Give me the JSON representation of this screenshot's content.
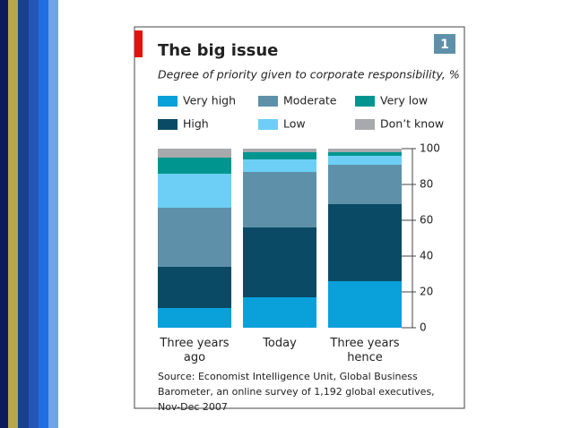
{
  "chart_data": {
    "type": "bar",
    "stacked": true,
    "title": "The big issue",
    "subtitle": "Degree of priority given to corporate responsibility, %",
    "badge": "1",
    "source": "Source: Economist Intelligence Unit, Global Business Barometer, an online survey of 1,192 global executives, Nov-Dec 2007",
    "categories": [
      "Three years ago",
      "Today",
      "Three years hence"
    ],
    "series": [
      {
        "name": "Very high",
        "color": "#0aa0d9",
        "values": [
          11,
          17,
          26
        ]
      },
      {
        "name": "High",
        "color": "#0b4a64",
        "values": [
          23,
          39,
          43
        ]
      },
      {
        "name": "Moderate",
        "color": "#5e91a9",
        "values": [
          33,
          31,
          22
        ]
      },
      {
        "name": "Low",
        "color": "#6dcff5",
        "values": [
          19,
          7,
          5
        ]
      },
      {
        "name": "Very low",
        "color": "#00968f",
        "values": [
          9,
          4,
          2
        ]
      },
      {
        "name": "Don’t know",
        "color": "#a7a9ac",
        "values": [
          5,
          2,
          2
        ]
      }
    ],
    "ylim": [
      0,
      100
    ],
    "yticks": [
      0,
      20,
      40,
      60,
      80,
      100
    ],
    "grid": false
  }
}
